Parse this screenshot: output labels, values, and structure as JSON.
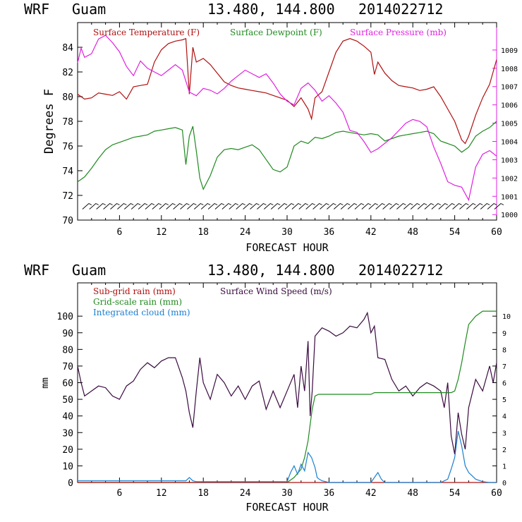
{
  "colors": {
    "temp": "#b01010",
    "dew": "#208a20",
    "pres": "#e020e0",
    "wind": "#3a0a40",
    "rain_sub": "#b01010",
    "rain_grid": "#208a20",
    "cloud": "#1a7fd0",
    "barb": "#000000"
  },
  "chart_data": [
    {
      "type": "line",
      "header": {
        "model": "WRF",
        "location": "Guam",
        "coords": "13.480, 144.800",
        "init": "2014022712"
      },
      "xlabel": "FORECAST HOUR",
      "ylabel": "Degrees F",
      "xlim": [
        0,
        60
      ],
      "ylim": [
        70,
        86
      ],
      "y2lim": [
        999.7,
        1010.5
      ],
      "x_ticks": [
        "6",
        "12",
        "18",
        "24",
        "30",
        "36",
        "42",
        "48",
        "54",
        "60"
      ],
      "y_ticks": [
        "70",
        "72",
        "74",
        "76",
        "78",
        "80",
        "82",
        "84"
      ],
      "y2_ticks": [
        "1000",
        "1001",
        "1002",
        "1003",
        "1004",
        "1005",
        "1006",
        "1007",
        "1008",
        "1009"
      ],
      "legend": [
        "Surface Temperature (F)",
        "Surface Dewpoint (F)",
        "Surface Pressure (mb)"
      ],
      "series": [
        {
          "name": "Surface Temperature (F)",
          "axis": "left",
          "x": [
            0,
            1,
            2,
            3,
            4,
            5,
            6,
            7,
            8,
            9,
            10,
            11,
            12,
            13,
            14,
            15,
            15.5,
            16,
            16.5,
            17,
            18,
            19,
            20,
            21,
            22,
            23,
            24,
            25,
            26,
            27,
            28,
            29,
            30,
            31,
            32,
            33,
            33.5,
            34,
            35,
            36,
            37,
            38,
            39,
            40,
            41,
            42,
            42.5,
            43,
            44,
            45,
            46,
            47,
            48,
            49,
            50,
            51,
            52,
            53,
            54,
            55,
            55.5,
            56,
            57,
            58,
            59,
            60
          ],
          "values": [
            80.2,
            79.8,
            79.9,
            80.3,
            80.2,
            80.1,
            80.4,
            79.8,
            80.8,
            80.9,
            81.0,
            82.8,
            83.8,
            84.3,
            84.5,
            84.6,
            84.7,
            80.2,
            84.0,
            82.8,
            83.1,
            82.6,
            81.9,
            81.2,
            80.9,
            80.7,
            80.6,
            80.5,
            80.4,
            80.3,
            80.1,
            79.9,
            79.7,
            79.2,
            79.9,
            79.0,
            78.2,
            79.9,
            80.4,
            82.0,
            83.6,
            84.5,
            84.7,
            84.5,
            84.1,
            83.6,
            81.8,
            82.8,
            81.9,
            81.3,
            80.9,
            80.8,
            80.7,
            80.5,
            80.6,
            80.8,
            80.0,
            79.0,
            78.0,
            76.5,
            76.2,
            76.8,
            78.5,
            79.9,
            81.0,
            83.0
          ]
        },
        {
          "name": "Surface Dewpoint (F)",
          "axis": "left",
          "x": [
            0,
            1,
            2,
            3,
            4,
            5,
            6,
            7,
            8,
            9,
            10,
            11,
            12,
            13,
            14,
            15,
            15.5,
            16,
            16.5,
            17,
            17.5,
            18,
            19,
            20,
            21,
            22,
            23,
            24,
            25,
            26,
            27,
            28,
            29,
            30,
            31,
            32,
            33,
            34,
            35,
            36,
            37,
            38,
            39,
            40,
            41,
            42,
            43,
            44,
            45,
            46,
            47,
            48,
            49,
            50,
            51,
            52,
            53,
            54,
            55,
            56,
            57,
            58,
            59,
            60
          ],
          "values": [
            73.1,
            73.5,
            74.2,
            75.0,
            75.7,
            76.1,
            76.3,
            76.5,
            76.7,
            76.8,
            76.9,
            77.2,
            77.3,
            77.4,
            77.5,
            77.3,
            74.5,
            76.8,
            77.6,
            75.6,
            73.4,
            72.5,
            73.6,
            75.1,
            75.7,
            75.8,
            75.7,
            75.9,
            76.1,
            75.7,
            74.9,
            74.1,
            73.9,
            74.3,
            76.0,
            76.4,
            76.2,
            76.7,
            76.6,
            76.8,
            77.1,
            77.2,
            77.1,
            77.0,
            76.9,
            77.0,
            76.9,
            76.4,
            76.6,
            76.8,
            76.9,
            77.0,
            77.1,
            77.2,
            77.0,
            76.4,
            76.2,
            76.0,
            75.5,
            75.9,
            76.8,
            77.2,
            77.5,
            78.0
          ]
        },
        {
          "name": "Surface Pressure (mb)",
          "axis": "right",
          "x": [
            0,
            0.5,
            1,
            2,
            3,
            4,
            5,
            6,
            7,
            8,
            9,
            10,
            11,
            12,
            13,
            14,
            15,
            16,
            17,
            18,
            19,
            20,
            21,
            22,
            23,
            24,
            25,
            26,
            27,
            28,
            29,
            30,
            31,
            32,
            33,
            34,
            35,
            36,
            37,
            38,
            39,
            40,
            41,
            42,
            43,
            44,
            45,
            46,
            47,
            48,
            49,
            50,
            51,
            52,
            53,
            54,
            55,
            56,
            57,
            58,
            59,
            60
          ],
          "values": [
            1008.3,
            1009.1,
            1008.6,
            1008.8,
            1009.6,
            1009.8,
            1009.4,
            1008.9,
            1008.1,
            1007.6,
            1008.4,
            1008.0,
            1007.8,
            1007.6,
            1007.9,
            1008.2,
            1007.9,
            1006.7,
            1006.5,
            1006.9,
            1006.8,
            1006.6,
            1006.9,
            1007.3,
            1007.6,
            1007.9,
            1007.7,
            1007.5,
            1007.7,
            1007.2,
            1006.6,
            1006.2,
            1006.0,
            1006.9,
            1007.2,
            1006.8,
            1006.2,
            1006.5,
            1006.1,
            1005.6,
            1004.6,
            1004.5,
            1004.0,
            1003.4,
            1003.6,
            1003.9,
            1004.2,
            1004.6,
            1005.0,
            1005.2,
            1005.1,
            1004.8,
            1003.7,
            1002.8,
            1001.8,
            1001.6,
            1001.5,
            1000.8,
            1002.6,
            1003.3,
            1003.5,
            1003.2
          ]
        }
      ],
      "wind_barbs": {
        "x_start": 1,
        "x_end": 60,
        "step": 1,
        "level": 71.0
      }
    },
    {
      "type": "line",
      "header": {
        "model": "WRF",
        "location": "Guam",
        "coords": "13.480, 144.800",
        "init": "2014022712"
      },
      "xlabel": "FORECAST HOUR",
      "ylabel": "mm",
      "xlim": [
        0,
        60
      ],
      "ylim": [
        0,
        120
      ],
      "y2lim": [
        0,
        12
      ],
      "x_ticks": [
        "6",
        "12",
        "18",
        "24",
        "30",
        "36",
        "42",
        "48",
        "54",
        "60"
      ],
      "y_ticks": [
        "0",
        "10",
        "20",
        "30",
        "40",
        "50",
        "60",
        "70",
        "80",
        "90",
        "100"
      ],
      "y2_ticks": [
        "0",
        "1",
        "2",
        "3",
        "4",
        "5",
        "6",
        "7",
        "8",
        "9",
        "10"
      ],
      "legend": [
        "Sub-grid rain (mm)",
        "Surface Wind Speed (m/s)",
        "Grid-scale rain (mm)",
        "Integrated cloud (mm)"
      ],
      "series": [
        {
          "name": "Surface Wind Speed (m/s)",
          "axis": "right",
          "x": [
            0,
            0.5,
            1,
            2,
            3,
            4,
            5,
            6,
            7,
            8,
            9,
            10,
            11,
            12,
            13,
            14,
            15,
            15.5,
            16,
            16.5,
            17,
            17.5,
            18,
            19,
            20,
            21,
            22,
            23,
            24,
            25,
            26,
            27,
            28,
            29,
            30,
            31,
            31.5,
            32,
            32.5,
            33,
            33.3,
            33.6,
            34,
            35,
            36,
            37,
            38,
            39,
            40,
            41,
            41.5,
            42,
            42.5,
            43,
            44,
            45,
            46,
            47,
            48,
            49,
            50,
            51,
            52,
            52.5,
            53,
            53.5,
            54,
            54.5,
            55,
            55.5,
            56,
            57,
            58,
            59,
            59.5,
            60
          ],
          "values": [
            7.0,
            6.0,
            5.2,
            5.5,
            5.8,
            5.7,
            5.2,
            5.0,
            5.8,
            6.1,
            6.8,
            7.2,
            6.9,
            7.3,
            7.5,
            7.5,
            6.3,
            5.5,
            4.2,
            3.3,
            5.5,
            7.5,
            6.0,
            5.0,
            6.5,
            6.0,
            5.2,
            5.8,
            5.0,
            5.8,
            6.1,
            4.4,
            5.5,
            4.5,
            5.5,
            6.5,
            4.5,
            7.0,
            5.5,
            8.5,
            4.0,
            5.5,
            8.8,
            9.3,
            9.1,
            8.8,
            9.0,
            9.4,
            9.3,
            9.8,
            10.2,
            9.0,
            9.4,
            7.5,
            7.4,
            6.2,
            5.5,
            5.8,
            5.2,
            5.7,
            6.0,
            5.8,
            5.5,
            4.5,
            6.0,
            2.8,
            1.7,
            4.2,
            2.9,
            2.0,
            4.5,
            6.2,
            5.5,
            7.0,
            6.0,
            7.2
          ]
        },
        {
          "name": "Grid-scale rain (mm)",
          "axis": "left",
          "x": [
            0,
            30,
            31,
            32,
            32.5,
            33,
            33.3,
            33.6,
            34,
            34.5,
            35,
            42,
            42.5,
            48,
            53,
            53.5,
            54,
            54.5,
            55,
            55.5,
            56,
            57,
            58,
            59,
            60
          ],
          "values": [
            0,
            0,
            3,
            8,
            15,
            25,
            35,
            44,
            52,
            53,
            53,
            53,
            54,
            54,
            54,
            54,
            55,
            62,
            72,
            84,
            95,
            100,
            103,
            103,
            103
          ]
        },
        {
          "name": "Sub-grid rain (mm)",
          "axis": "left",
          "x": [
            0,
            60
          ],
          "values": [
            0,
            0
          ]
        },
        {
          "name": "Integrated cloud (mm)",
          "axis": "left",
          "x": [
            0,
            15.5,
            16,
            16.5,
            17,
            30,
            30.5,
            31,
            31.5,
            32,
            32.5,
            33,
            33.5,
            34,
            34.3,
            34.6,
            35,
            36,
            37,
            42,
            42.5,
            43,
            43.5,
            44,
            52,
            53,
            53.5,
            54,
            54.5,
            55,
            55.5,
            56,
            56.5,
            57,
            58,
            59,
            60
          ],
          "values": [
            1,
            1,
            3,
            1,
            0.5,
            0.5,
            6,
            10,
            5,
            11,
            7,
            18,
            15,
            9,
            3,
            2,
            1,
            0,
            0,
            0,
            3,
            6,
            2,
            0,
            0,
            2,
            8,
            15,
            31,
            22,
            10,
            6,
            4,
            2,
            0.5,
            0,
            0
          ]
        }
      ]
    }
  ]
}
